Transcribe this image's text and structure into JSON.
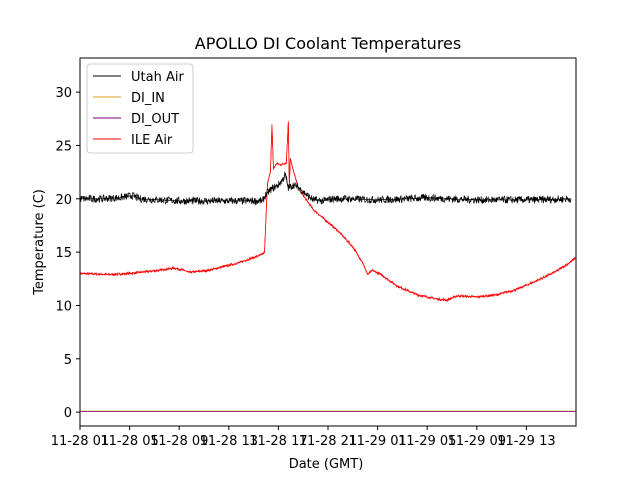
{
  "chart_data": {
    "type": "line",
    "title": "APOLLO DI Coolant Temperatures",
    "xlabel": "Date (GMT)",
    "ylabel": "Temperature (C)",
    "xlim": [
      0,
      50
    ],
    "ylim": [
      -1.3,
      33.2
    ],
    "yticks": [
      0,
      5,
      10,
      15,
      20,
      25,
      30
    ],
    "ytick_labels": [
      "0",
      "5",
      "10",
      "15",
      "20",
      "25",
      "30"
    ],
    "xticks": [
      0,
      5,
      10,
      15,
      20,
      25,
      30,
      35,
      40,
      45
    ],
    "xtick_labels": [
      "11-28 01",
      "11-28 05",
      "11-28 09",
      "11-28 13",
      "11-28 17",
      "11-28 21",
      "11-29 01",
      "11-29 05",
      "11-29 09",
      "11-29 13"
    ],
    "legend_position": "top-left",
    "series": [
      {
        "name": "Utah Air",
        "color": "#000000",
        "noise": 0.35,
        "x": [
          0,
          2,
          4,
          5.3,
          6,
          8,
          10,
          12,
          14,
          17,
          18.4,
          18.8,
          19.3,
          20,
          20.5,
          20.7,
          21.0,
          21.5,
          22,
          22.8,
          23.5,
          24.5,
          25.5,
          27,
          30,
          33,
          35,
          37,
          40,
          43,
          46,
          49.5
        ],
        "y": [
          20.0,
          20.0,
          20.1,
          20.3,
          20.0,
          19.9,
          19.8,
          19.8,
          19.8,
          19.8,
          19.8,
          20.5,
          20.9,
          21.3,
          21.9,
          22.3,
          21.0,
          21.3,
          21.1,
          20.4,
          19.9,
          19.8,
          20.0,
          20.0,
          19.9,
          20.0,
          20.1,
          20.0,
          19.9,
          19.9,
          19.9,
          20.0
        ]
      },
      {
        "name": "DI_IN",
        "color": "#d4a017",
        "noise": 0,
        "x": [
          0,
          50
        ],
        "y": [
          0.1,
          0.1
        ]
      },
      {
        "name": "DI_OUT",
        "color": "#800080",
        "noise": 0,
        "x": [
          0,
          50
        ],
        "y": [
          0.05,
          0.05
        ]
      },
      {
        "name": "ILE Air",
        "color": "#ff0000",
        "noise": 0.12,
        "x": [
          0,
          3,
          5,
          6,
          8,
          9.5,
          10.5,
          11,
          13,
          16,
          18.4,
          18.6,
          18.9,
          19.2,
          19.35,
          19.5,
          19.8,
          20.3,
          20.8,
          21.0,
          21.1,
          21.2,
          21.4,
          22.0,
          23.5,
          26,
          27.5,
          28.5,
          29.0,
          29.5,
          30.5,
          32,
          34,
          36,
          37,
          38,
          40,
          42,
          44,
          46,
          48,
          49.5,
          50
        ],
        "y": [
          13.0,
          12.9,
          13.0,
          13.1,
          13.3,
          13.5,
          13.3,
          13.1,
          13.3,
          14.0,
          14.8,
          15.0,
          21.5,
          22.5,
          27.0,
          22.8,
          23.3,
          23.2,
          23.4,
          27.2,
          21.0,
          23.8,
          23.0,
          21.0,
          19.0,
          17.0,
          15.5,
          14.0,
          12.9,
          13.3,
          12.8,
          11.8,
          11.0,
          10.6,
          10.5,
          10.9,
          10.8,
          11.0,
          11.5,
          12.3,
          13.2,
          14.1,
          14.5
        ]
      }
    ]
  }
}
